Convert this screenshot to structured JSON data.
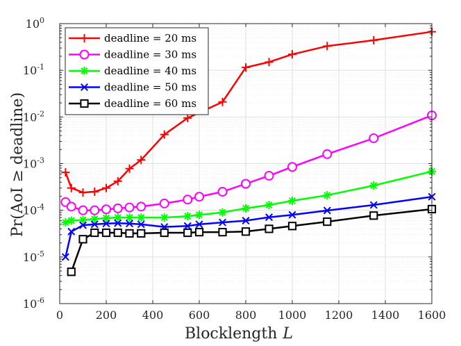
{
  "chart_data": {
    "type": "line",
    "xlabel": "Blocklength",
    "xlabel_var": "L",
    "ylabel": "Pr(AoI ≥ deadline)",
    "xlim": [
      0,
      1600
    ],
    "ylim": [
      1e-06,
      1
    ],
    "y_scale": "log",
    "grid": true,
    "legend_position": "top-left",
    "x_ticks": [
      "0",
      "200",
      "400",
      "600",
      "800",
      "1000",
      "1200",
      "1400",
      "1600"
    ],
    "y_ticks": [
      {
        "base": "10",
        "exp": "0"
      },
      {
        "base": "10",
        "exp": "-1"
      },
      {
        "base": "10",
        "exp": "-2"
      },
      {
        "base": "10",
        "exp": "-3"
      },
      {
        "base": "10",
        "exp": "-4"
      },
      {
        "base": "10",
        "exp": "-5"
      },
      {
        "base": "10",
        "exp": "-6"
      }
    ],
    "series": [
      {
        "name": "deadline = 20 ms",
        "color": "#ff0000",
        "marker": "plus",
        "x": [
          25,
          50,
          100,
          150,
          200,
          250,
          300,
          350,
          450,
          550,
          700,
          800,
          900,
          1000,
          1150,
          1350,
          1600
        ],
        "y": [
          0.00065,
          0.0003,
          0.00024,
          0.00025,
          0.0003,
          0.00042,
          0.00078,
          0.0012,
          0.0042,
          0.0095,
          0.021,
          0.115,
          0.15,
          0.22,
          0.33,
          0.44,
          0.67
        ]
      },
      {
        "name": "deadline = 30 ms",
        "color": "#ff00ff",
        "marker": "circle",
        "x": [
          25,
          50,
          100,
          150,
          200,
          250,
          300,
          350,
          450,
          550,
          600,
          700,
          800,
          900,
          1000,
          1150,
          1350,
          1600
        ],
        "y": [
          0.00015,
          0.00012,
          0.0001,
          0.0001,
          0.000105,
          0.00011,
          0.000115,
          0.00012,
          0.00014,
          0.00017,
          0.000195,
          0.00025,
          0.00037,
          0.00055,
          0.00085,
          0.0016,
          0.0035,
          0.0108
        ]
      },
      {
        "name": "deadline = 40 ms",
        "color": "#00ff00",
        "marker": "asterisk",
        "x": [
          25,
          50,
          100,
          150,
          200,
          250,
          300,
          350,
          450,
          550,
          600,
          700,
          800,
          900,
          1000,
          1150,
          1350,
          1600
        ],
        "y": [
          5.5e-05,
          6e-05,
          6.2e-05,
          6.5e-05,
          6.8e-05,
          7e-05,
          7e-05,
          7e-05,
          7e-05,
          7.5e-05,
          8e-05,
          9e-05,
          0.00011,
          0.00013,
          0.00016,
          0.00021,
          0.00034,
          0.00068
        ]
      },
      {
        "name": "deadline = 50 ms",
        "color": "#0000ff",
        "marker": "x",
        "x": [
          25,
          50,
          100,
          150,
          200,
          250,
          300,
          350,
          450,
          550,
          600,
          700,
          800,
          900,
          1000,
          1150,
          1350,
          1600
        ],
        "y": [
          1e-05,
          3.5e-05,
          4.8e-05,
          5e-05,
          5.2e-05,
          5.3e-05,
          5.2e-05,
          5e-05,
          4.4e-05,
          4.6e-05,
          5e-05,
          5.5e-05,
          6e-05,
          7.1e-05,
          8e-05,
          9.9e-05,
          0.00013,
          0.000195
        ]
      },
      {
        "name": "deadline = 60 ms",
        "color": "#000000",
        "marker": "square",
        "x": [
          50,
          100,
          150,
          200,
          250,
          300,
          350,
          450,
          550,
          600,
          700,
          800,
          900,
          1000,
          1150,
          1350,
          1600
        ],
        "y": [
          4.8e-06,
          2.4e-05,
          3.3e-05,
          3.3e-05,
          3.3e-05,
          3.2e-05,
          3.2e-05,
          3.3e-05,
          3.3e-05,
          3.4e-05,
          3.4e-05,
          3.5e-05,
          4e-05,
          4.6e-05,
          5.7e-05,
          7.7e-05,
          0.000106
        ]
      }
    ]
  }
}
